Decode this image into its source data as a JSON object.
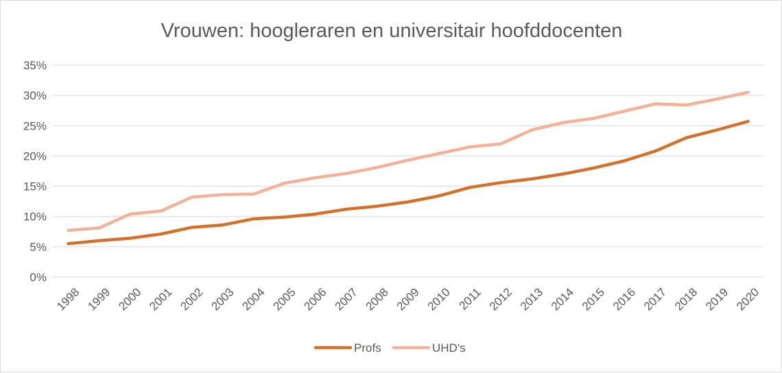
{
  "chart_data": {
    "type": "line",
    "title": "Vrouwen: hoogleraren en universitair hoofddocenten",
    "xlabel": "",
    "ylabel": "",
    "ylim": [
      0,
      0.35
    ],
    "y_tick_values": [
      0,
      0.05,
      0.1,
      0.15,
      0.2,
      0.25,
      0.3,
      0.35
    ],
    "y_tick_labels": [
      "0%",
      "5%",
      "10%",
      "15%",
      "20%",
      "25%",
      "30%",
      "35%"
    ],
    "grid": true,
    "legend_position": "bottom",
    "categories": [
      "1998",
      "1999",
      "2000",
      "2001",
      "2002",
      "2003",
      "2004",
      "2005",
      "2006",
      "2007",
      "2008",
      "2009",
      "2010",
      "2011",
      "2012",
      "2013",
      "2014",
      "2015",
      "2016",
      "2017",
      "2018",
      "2019",
      "2020"
    ],
    "series": [
      {
        "name": "Profs",
        "color": "#d2722a",
        "values": [
          0.055,
          0.06,
          0.064,
          0.071,
          0.082,
          0.086,
          0.096,
          0.099,
          0.104,
          0.112,
          0.117,
          0.124,
          0.134,
          0.148,
          0.156,
          0.162,
          0.17,
          0.18,
          0.192,
          0.208,
          0.23,
          0.243,
          0.257
        ]
      },
      {
        "name": "UHD's",
        "color": "#f4b19a",
        "values": [
          0.077,
          0.081,
          0.104,
          0.109,
          0.132,
          0.136,
          0.137,
          0.155,
          0.164,
          0.171,
          0.181,
          0.193,
          0.204,
          0.215,
          0.22,
          0.243,
          0.255,
          0.262,
          0.274,
          0.286,
          0.284,
          0.294,
          0.305
        ]
      }
    ]
  }
}
